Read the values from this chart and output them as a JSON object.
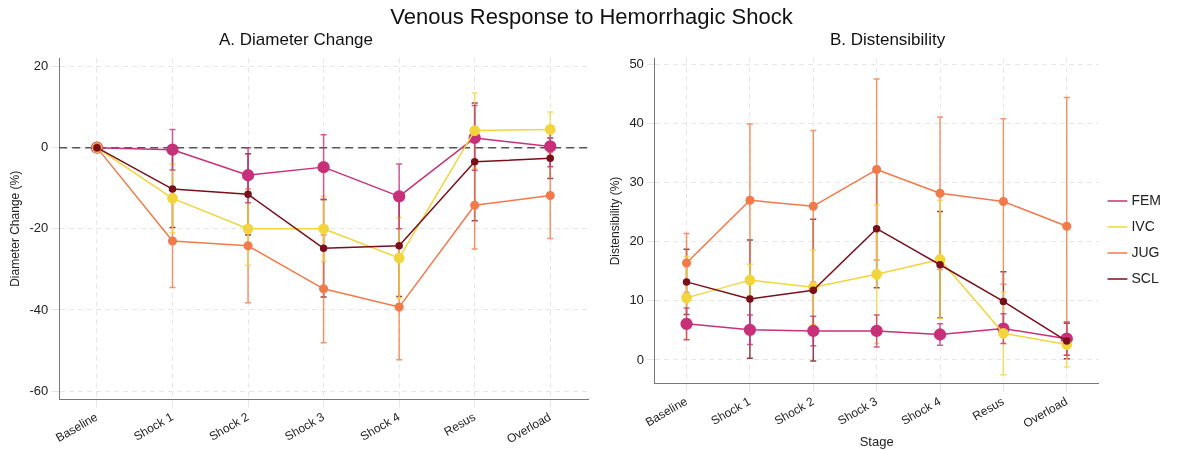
{
  "chart_data": [
    {
      "type": "line",
      "title": "Venous Response to Hemorrhagic Shock",
      "subtitle": "A. Diameter Change",
      "ylabel": "Diameter Change (%)",
      "categories": [
        "Baseline",
        "Shock 1",
        "Shock 2",
        "Shock 3",
        "Shock 4",
        "Resus",
        "Overload"
      ],
      "series": [
        {
          "color": "#c8307a",
          "values": [
            0,
            -0.5,
            -6.8,
            -4.8,
            -12,
            2.4,
            0.3
          ],
          "errors": [
            null,
            5,
            6.8,
            8,
            8,
            8,
            5
          ]
        },
        {
          "color": "#f2d53c",
          "values": [
            0,
            -12.5,
            -20,
            -20,
            -27.2,
            4.2,
            4.5
          ],
          "errors": [
            null,
            8.5,
            9,
            8,
            10,
            9.3,
            4.3
          ]
        },
        {
          "color": "#f27a4a",
          "values": [
            0,
            -23,
            -24.2,
            -34.8,
            -39.3,
            -14.2,
            -11.8
          ],
          "errors": [
            null,
            11.5,
            14,
            13.3,
            13,
            10.8,
            10.6
          ]
        },
        {
          "color": "#7a0f1c",
          "values": [
            0,
            -10.2,
            -11.5,
            -24.8,
            -24.2,
            -3.5,
            -2.6
          ],
          "errors": [
            null,
            9.5,
            10,
            12,
            12.5,
            14.5,
            5
          ]
        }
      ],
      "ylim": [
        -62,
        22
      ],
      "yticks": [
        -60,
        -40,
        -20,
        0,
        20
      ],
      "grid": true,
      "marker": "circle",
      "ref_lines": [
        {
          "axis": "y",
          "value": 0,
          "color": "#555555",
          "line_style": "dashed"
        }
      ]
    },
    {
      "type": "line",
      "title": "B. Distensibility",
      "xlabel": "Stage",
      "ylabel": "Distensibility (%)",
      "categories": [
        "Baseline",
        "Shock 1",
        "Shock 2",
        "Shock 3",
        "Shock 4",
        "Resus",
        "Overload"
      ],
      "series": [
        {
          "name": "FEM",
          "color": "#c8307a",
          "values": [
            6.1,
            5.1,
            4.9,
            4.9,
            4.3,
            5.3,
            3.6
          ],
          "errors": [
            2.7,
            2.5,
            2.5,
            2.7,
            1.8,
            2.5,
            2.8
          ]
        },
        {
          "name": "IVC",
          "color": "#f2d53c",
          "values": [
            10.5,
            13.5,
            12.3,
            14.5,
            17,
            4.5,
            2.6
          ],
          "errors": [
            7,
            2.7,
            6.3,
            11.7,
            10,
            7,
            3.8
          ]
        },
        {
          "name": "JUG",
          "color": "#f27a4a",
          "values": [
            16.4,
            27,
            26,
            32.2,
            28.2,
            26.8,
            22.6
          ],
          "errors": [
            5,
            12.9,
            12.8,
            15.3,
            12.9,
            14,
            21.8
          ]
        },
        {
          "name": "SCL",
          "color": "#7a0f1c",
          "values": [
            13.2,
            10.3,
            11.8,
            22.2,
            16.1,
            9.9,
            3.2
          ],
          "errors": [
            5.5,
            10,
            12,
            10,
            9,
            5,
            3
          ]
        }
      ],
      "ylim": [
        -4,
        51
      ],
      "yticks": [
        0,
        10,
        20,
        30,
        40,
        50
      ],
      "grid": true,
      "marker": "circle",
      "legend": "right"
    }
  ]
}
